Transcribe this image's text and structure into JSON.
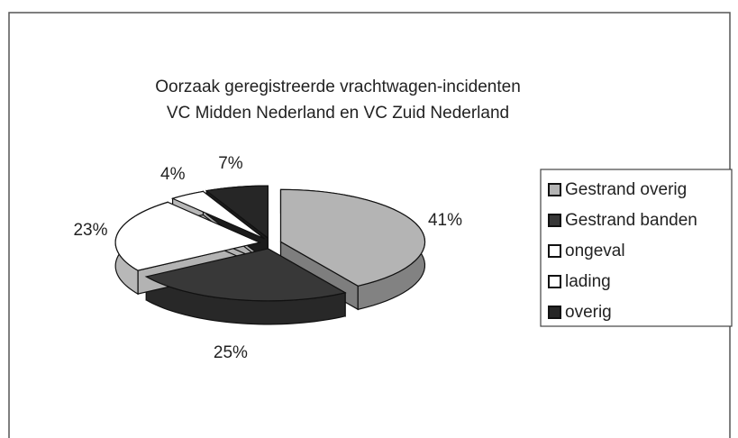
{
  "chart_data": {
    "type": "pie",
    "title": [
      "Oorzaak geregistreerde vrachtwagen-incidenten",
      "VC Midden Nederland en VC Zuid Nederland"
    ],
    "categories": [
      "Gestrand overig",
      "Gestrand banden",
      "ongeval",
      "lading",
      "overig"
    ],
    "values": [
      41,
      25,
      23,
      4,
      7
    ],
    "value_labels": [
      "41%",
      "25%",
      "23%",
      "4%",
      "7%"
    ],
    "colors": [
      "#b4b4b4",
      "#383838",
      "#ffffff",
      "#ffffff",
      "#262626"
    ],
    "legend": "right"
  }
}
